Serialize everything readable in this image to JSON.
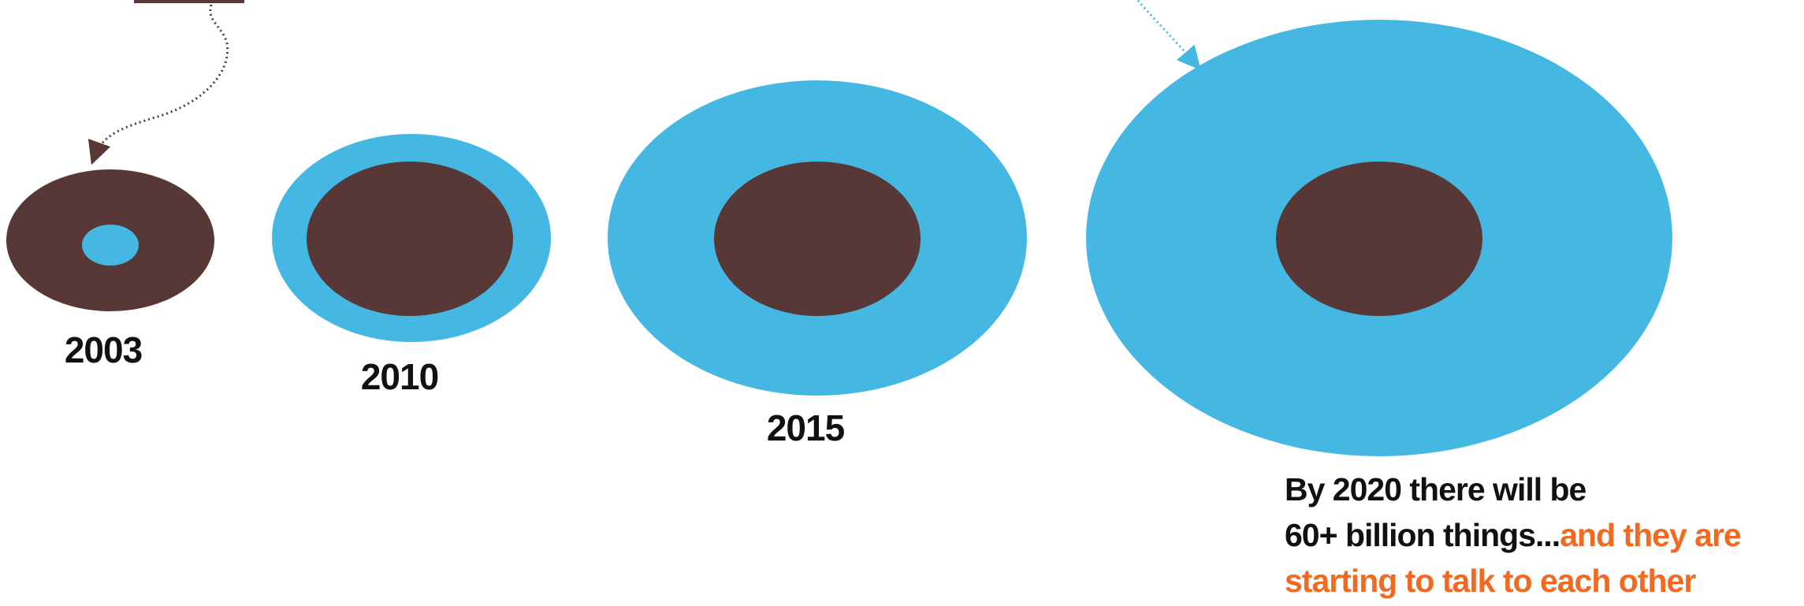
{
  "colors": {
    "things": "#44b8e3",
    "people": "#583836",
    "arrow": "#583836",
    "label": "#111111",
    "accent": "#f26a21"
  },
  "stages": [
    {
      "year": "2003"
    },
    {
      "year": "2010"
    },
    {
      "year": "2015"
    },
    {
      "year": "2020"
    }
  ],
  "caption": {
    "line1": "By 2020 there will be",
    "line2_dark": "60+ billion things...",
    "line2_accent": "and they are",
    "line3_accent": "starting to talk to each other"
  }
}
